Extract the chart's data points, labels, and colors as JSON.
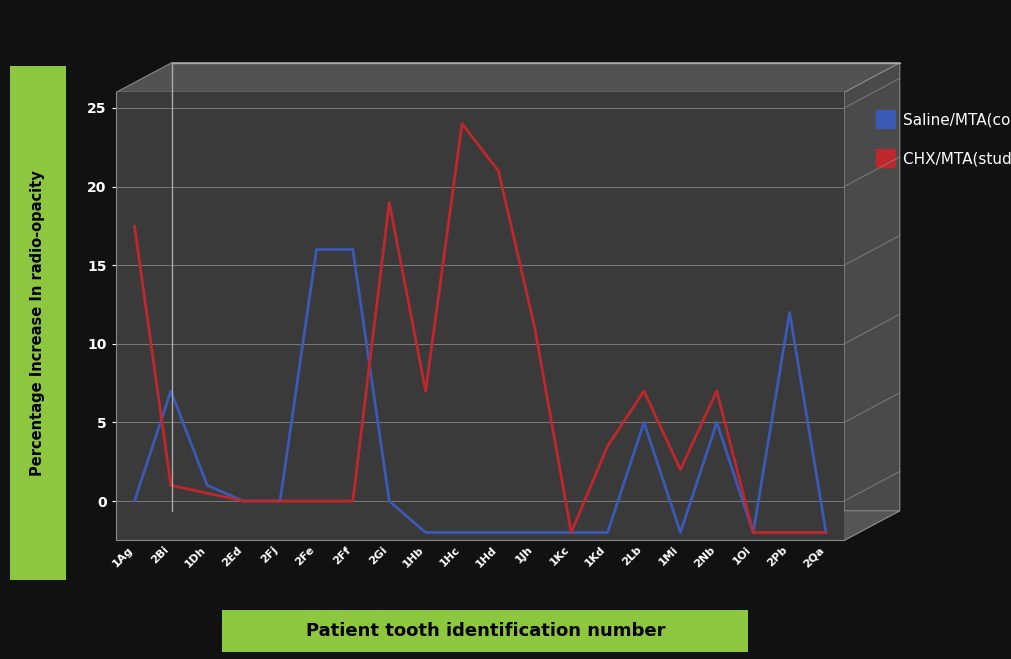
{
  "categories": [
    "1Ag",
    "2Bi",
    "1Dh",
    "2Ed",
    "2Fj",
    "2Fe",
    "2Ff",
    "2Gi",
    "1Hb",
    "1Hc",
    "1Hd",
    "1Jh",
    "1Kc",
    "1Kd",
    "2Lb",
    "1Mi",
    "2Nb",
    "1Oi",
    "2Pb",
    "2Qa"
  ],
  "blue_values": [
    0,
    7,
    1,
    0,
    0,
    16,
    16,
    0,
    -2,
    -2,
    -2,
    -2,
    -2,
    -2,
    5,
    -2,
    5,
    -2,
    12,
    -2
  ],
  "red_values": [
    17.5,
    1,
    0.5,
    0,
    0,
    0,
    0,
    19,
    7,
    24,
    21,
    11,
    -2,
    3.5,
    7,
    2,
    7,
    -2,
    -2,
    -2
  ],
  "blue_color": "#3a5ab5",
  "red_color": "#c0272d",
  "background_color": "#111111",
  "plot_bg_color": "#3a3a3a",
  "ylabel": "Percentage Increase In radio-opacity",
  "xlabel": "Patient tooth identification number",
  "ylim": [
    0,
    25
  ],
  "yticks": [
    0,
    5,
    10,
    15,
    20,
    25
  ],
  "legend_blue": "Saline/MTA(control group)",
  "legend_red": "CHX/MTA(study group)",
  "ylabel_bg": "#8dc63f",
  "xlabel_bg": "#8dc63f",
  "grid_color": "#888888",
  "wall_color": "#4a4a4a",
  "floor_color": "#555555"
}
